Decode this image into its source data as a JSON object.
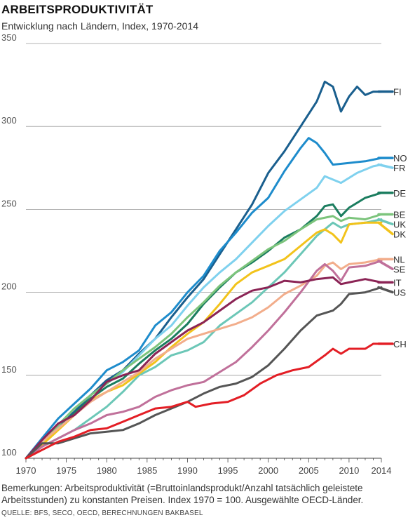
{
  "header": {
    "title": "ARBEITSPRODUKTIVITÄT",
    "subtitle": "Entwicklung nach Ländern, Index, 1970-2014"
  },
  "footer": {
    "note": "Bemerkungen: Arbeitsproduktivität (=Bruttoinlandsprodukt/Anzahl tatsächlich geleistete Arbeitsstunden) zu konstanten Preisen. Index 1970 = 100. Ausgewählte OECD-Länder.",
    "source": "QUELLE: BFS, SECO, OECD, BERECHNUNGEN BAKBASEL"
  },
  "chart_data": {
    "type": "line",
    "title": "ARBEITSPRODUKTIVITÄT",
    "subtitle": "Entwicklung nach Ländern, Index, 1970-2014",
    "xlabel": "",
    "ylabel": "",
    "xlim": [
      1970,
      2014
    ],
    "ylim": [
      100,
      350
    ],
    "x_ticks": [
      1970,
      1975,
      1980,
      1985,
      1990,
      1995,
      2000,
      2005,
      2010,
      2014
    ],
    "y_ticks": [
      100,
      150,
      200,
      250,
      300,
      350
    ],
    "grid": "horizontal",
    "legend": "right, end of lines",
    "series": [
      {
        "name": "FI",
        "color": "#1a5f8e",
        "points": [
          [
            1970,
            100
          ],
          [
            1972,
            110
          ],
          [
            1974,
            120
          ],
          [
            1976,
            128
          ],
          [
            1978,
            138
          ],
          [
            1980,
            147
          ],
          [
            1982,
            153
          ],
          [
            1984,
            163
          ],
          [
            1986,
            172
          ],
          [
            1988,
            185
          ],
          [
            1990,
            197
          ],
          [
            1992,
            208
          ],
          [
            1994,
            223
          ],
          [
            1996,
            238
          ],
          [
            1998,
            253
          ],
          [
            2000,
            272
          ],
          [
            2002,
            285
          ],
          [
            2004,
            300
          ],
          [
            2006,
            315
          ],
          [
            2007,
            327
          ],
          [
            2008,
            324
          ],
          [
            2009,
            309
          ],
          [
            2010,
            318
          ],
          [
            2011,
            324
          ],
          [
            2012,
            319
          ],
          [
            2013,
            321
          ],
          [
            2014,
            321
          ]
        ]
      },
      {
        "name": "NO",
        "color": "#1e8ccc",
        "points": [
          [
            1970,
            100
          ],
          [
            1972,
            112
          ],
          [
            1974,
            124
          ],
          [
            1976,
            133
          ],
          [
            1978,
            142
          ],
          [
            1980,
            153
          ],
          [
            1982,
            158
          ],
          [
            1984,
            165
          ],
          [
            1986,
            180
          ],
          [
            1988,
            188
          ],
          [
            1990,
            200
          ],
          [
            1992,
            210
          ],
          [
            1994,
            225
          ],
          [
            1996,
            236
          ],
          [
            1998,
            248
          ],
          [
            2000,
            257
          ],
          [
            2002,
            273
          ],
          [
            2004,
            287
          ],
          [
            2005,
            293
          ],
          [
            2006,
            290
          ],
          [
            2007,
            284
          ],
          [
            2008,
            277
          ],
          [
            2010,
            278
          ],
          [
            2012,
            279
          ],
          [
            2014,
            281
          ]
        ]
      },
      {
        "name": "FR",
        "color": "#7fd1ee",
        "points": [
          [
            1970,
            100
          ],
          [
            1972,
            110
          ],
          [
            1974,
            120
          ],
          [
            1976,
            130
          ],
          [
            1978,
            138
          ],
          [
            1980,
            145
          ],
          [
            1982,
            152
          ],
          [
            1984,
            162
          ],
          [
            1986,
            172
          ],
          [
            1988,
            180
          ],
          [
            1990,
            192
          ],
          [
            1992,
            203
          ],
          [
            1994,
            212
          ],
          [
            1996,
            220
          ],
          [
            1998,
            230
          ],
          [
            2000,
            240
          ],
          [
            2002,
            249
          ],
          [
            2004,
            256
          ],
          [
            2006,
            263
          ],
          [
            2007,
            270
          ],
          [
            2009,
            266
          ],
          [
            2011,
            272
          ],
          [
            2013,
            276
          ],
          [
            2014,
            277
          ]
        ]
      },
      {
        "name": "DE",
        "color": "#1b7d5f",
        "points": [
          [
            1970,
            100
          ],
          [
            1972,
            110
          ],
          [
            1974,
            118
          ],
          [
            1976,
            127
          ],
          [
            1978,
            136
          ],
          [
            1980,
            143
          ],
          [
            1982,
            148
          ],
          [
            1984,
            157
          ],
          [
            1986,
            165
          ],
          [
            1988,
            172
          ],
          [
            1990,
            181
          ],
          [
            1992,
            193
          ],
          [
            1994,
            203
          ],
          [
            1996,
            212
          ],
          [
            1998,
            218
          ],
          [
            2000,
            225
          ],
          [
            2002,
            233
          ],
          [
            2004,
            238
          ],
          [
            2006,
            246
          ],
          [
            2007,
            252
          ],
          [
            2008,
            253
          ],
          [
            2009,
            246
          ],
          [
            2010,
            251
          ],
          [
            2012,
            257
          ],
          [
            2014,
            260
          ]
        ]
      },
      {
        "name": "BE",
        "color": "#7cc47c",
        "points": [
          [
            1970,
            100
          ],
          [
            1972,
            110
          ],
          [
            1974,
            120
          ],
          [
            1976,
            130
          ],
          [
            1978,
            138
          ],
          [
            1980,
            145
          ],
          [
            1982,
            153
          ],
          [
            1984,
            160
          ],
          [
            1986,
            167
          ],
          [
            1988,
            175
          ],
          [
            1990,
            185
          ],
          [
            1992,
            194
          ],
          [
            1994,
            204
          ],
          [
            1996,
            212
          ],
          [
            1998,
            219
          ],
          [
            2000,
            226
          ],
          [
            2002,
            231
          ],
          [
            2004,
            238
          ],
          [
            2006,
            244
          ],
          [
            2008,
            246
          ],
          [
            2009,
            243
          ],
          [
            2010,
            245
          ],
          [
            2012,
            244
          ],
          [
            2014,
            247
          ]
        ]
      },
      {
        "name": "UK",
        "color": "#6cc7b7",
        "points": [
          [
            1970,
            100
          ],
          [
            1972,
            107
          ],
          [
            1974,
            112
          ],
          [
            1976,
            117
          ],
          [
            1978,
            124
          ],
          [
            1980,
            131
          ],
          [
            1982,
            140
          ],
          [
            1984,
            150
          ],
          [
            1986,
            155
          ],
          [
            1988,
            162
          ],
          [
            1990,
            165
          ],
          [
            1992,
            170
          ],
          [
            1994,
            180
          ],
          [
            1996,
            187
          ],
          [
            1998,
            194
          ],
          [
            2000,
            203
          ],
          [
            2002,
            212
          ],
          [
            2004,
            223
          ],
          [
            2006,
            234
          ],
          [
            2007,
            238
          ],
          [
            2008,
            242
          ],
          [
            2009,
            239
          ],
          [
            2010,
            241
          ],
          [
            2012,
            242
          ],
          [
            2014,
            244
          ]
        ]
      },
      {
        "name": "DK",
        "color": "#f2c31b",
        "points": [
          [
            1970,
            100
          ],
          [
            1972,
            108
          ],
          [
            1974,
            117
          ],
          [
            1976,
            126
          ],
          [
            1978,
            135
          ],
          [
            1980,
            140
          ],
          [
            1982,
            144
          ],
          [
            1984,
            151
          ],
          [
            1986,
            158
          ],
          [
            1988,
            167
          ],
          [
            1990,
            175
          ],
          [
            1992,
            182
          ],
          [
            1994,
            193
          ],
          [
            1996,
            205
          ],
          [
            1998,
            212
          ],
          [
            2000,
            216
          ],
          [
            2002,
            220
          ],
          [
            2004,
            228
          ],
          [
            2006,
            236
          ],
          [
            2007,
            238
          ],
          [
            2008,
            235
          ],
          [
            2009,
            230
          ],
          [
            2010,
            241
          ],
          [
            2012,
            242
          ],
          [
            2014,
            242
          ]
        ]
      },
      {
        "name": "NL",
        "color": "#f2ad8b",
        "points": [
          [
            1970,
            100
          ],
          [
            1972,
            110
          ],
          [
            1974,
            118
          ],
          [
            1976,
            126
          ],
          [
            1978,
            134
          ],
          [
            1980,
            140
          ],
          [
            1982,
            146
          ],
          [
            1984,
            152
          ],
          [
            1986,
            160
          ],
          [
            1988,
            166
          ],
          [
            1990,
            172
          ],
          [
            1992,
            175
          ],
          [
            1994,
            178
          ],
          [
            1996,
            181
          ],
          [
            1998,
            185
          ],
          [
            2000,
            191
          ],
          [
            2002,
            199
          ],
          [
            2004,
            204
          ],
          [
            2006,
            210
          ],
          [
            2007,
            216
          ],
          [
            2008,
            218
          ],
          [
            2009,
            214
          ],
          [
            2010,
            217
          ],
          [
            2012,
            218
          ],
          [
            2014,
            220
          ]
        ]
      },
      {
        "name": "SE",
        "color": "#c0709a",
        "points": [
          [
            1970,
            100
          ],
          [
            1972,
            107
          ],
          [
            1974,
            112
          ],
          [
            1976,
            117
          ],
          [
            1978,
            121
          ],
          [
            1980,
            126
          ],
          [
            1982,
            128
          ],
          [
            1984,
            131
          ],
          [
            1986,
            137
          ],
          [
            1988,
            141
          ],
          [
            1990,
            144
          ],
          [
            1992,
            146
          ],
          [
            1994,
            152
          ],
          [
            1996,
            158
          ],
          [
            1998,
            167
          ],
          [
            2000,
            177
          ],
          [
            2002,
            188
          ],
          [
            2004,
            200
          ],
          [
            2006,
            213
          ],
          [
            2007,
            217
          ],
          [
            2008,
            213
          ],
          [
            2009,
            207
          ],
          [
            2010,
            215
          ],
          [
            2012,
            216
          ],
          [
            2014,
            219
          ]
        ]
      },
      {
        "name": "IT",
        "color": "#8b2455",
        "points": [
          [
            1970,
            100
          ],
          [
            1972,
            111
          ],
          [
            1974,
            121
          ],
          [
            1976,
            126
          ],
          [
            1978,
            135
          ],
          [
            1980,
            146
          ],
          [
            1982,
            150
          ],
          [
            1984,
            153
          ],
          [
            1986,
            163
          ],
          [
            1988,
            170
          ],
          [
            1990,
            177
          ],
          [
            1992,
            182
          ],
          [
            1994,
            189
          ],
          [
            1996,
            196
          ],
          [
            1998,
            201
          ],
          [
            2000,
            203
          ],
          [
            2002,
            207
          ],
          [
            2004,
            206
          ],
          [
            2006,
            208
          ],
          [
            2008,
            209
          ],
          [
            2009,
            205
          ],
          [
            2010,
            206
          ],
          [
            2012,
            208
          ],
          [
            2014,
            206
          ]
        ]
      },
      {
        "name": "US",
        "color": "#555555",
        "points": [
          [
            1970,
            100
          ],
          [
            1972,
            109
          ],
          [
            1974,
            109
          ],
          [
            1976,
            112
          ],
          [
            1978,
            115
          ],
          [
            1980,
            116
          ],
          [
            1982,
            117
          ],
          [
            1984,
            121
          ],
          [
            1986,
            126
          ],
          [
            1988,
            130
          ],
          [
            1990,
            134
          ],
          [
            1992,
            139
          ],
          [
            1994,
            143
          ],
          [
            1996,
            145
          ],
          [
            1998,
            149
          ],
          [
            2000,
            156
          ],
          [
            2002,
            166
          ],
          [
            2004,
            177
          ],
          [
            2006,
            186
          ],
          [
            2008,
            189
          ],
          [
            2009,
            193
          ],
          [
            2010,
            199
          ],
          [
            2012,
            200
          ],
          [
            2014,
            203
          ]
        ]
      },
      {
        "name": "CH",
        "color": "#e31e25",
        "points": [
          [
            1970,
            100
          ],
          [
            1972,
            105
          ],
          [
            1974,
            110
          ],
          [
            1976,
            113
          ],
          [
            1978,
            117
          ],
          [
            1980,
            118
          ],
          [
            1982,
            122
          ],
          [
            1984,
            126
          ],
          [
            1986,
            130
          ],
          [
            1988,
            131
          ],
          [
            1990,
            134
          ],
          [
            1991,
            131
          ],
          [
            1993,
            133
          ],
          [
            1995,
            134
          ],
          [
            1997,
            138
          ],
          [
            1999,
            145
          ],
          [
            2001,
            150
          ],
          [
            2003,
            153
          ],
          [
            2005,
            155
          ],
          [
            2007,
            162
          ],
          [
            2008,
            166
          ],
          [
            2009,
            163
          ],
          [
            2010,
            166
          ],
          [
            2012,
            166
          ],
          [
            2013,
            169
          ],
          [
            2014,
            169
          ]
        ]
      }
    ]
  }
}
